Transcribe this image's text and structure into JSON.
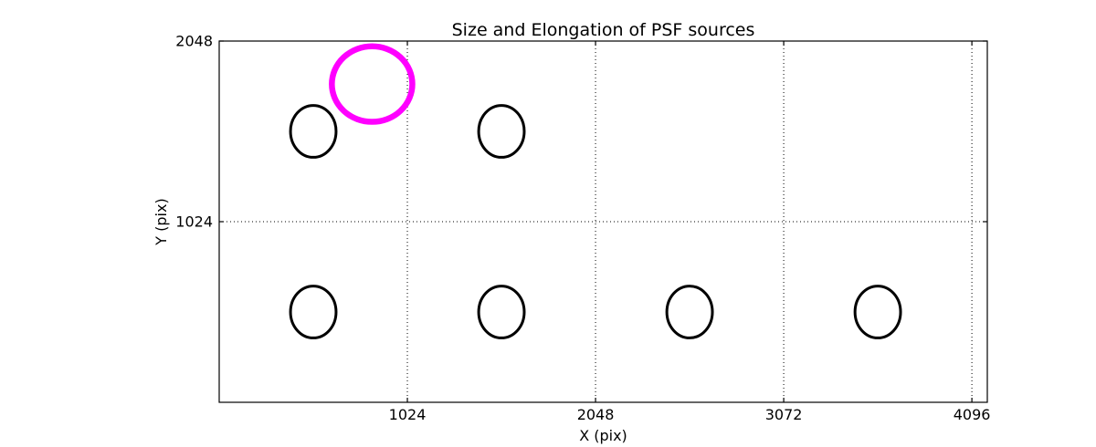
{
  "figure": {
    "background": "#ffffff"
  },
  "chart_data": {
    "type": "scatter",
    "title": "Size and Elongation of PSF sources",
    "xlabel": "X (pix)",
    "ylabel": "Y (pix)",
    "xlim": [
      0,
      4180
    ],
    "ylim": [
      0,
      2048
    ],
    "xticks": [
      1024,
      2048,
      3072,
      4096
    ],
    "yticks": [
      1024,
      2048
    ],
    "grid": {
      "visible": true,
      "style": "dotted",
      "color": "#000000"
    },
    "axes_color": "#000000",
    "highlight_color": "#ff00ff",
    "source_color": "#000000",
    "sources": [
      {
        "x": 832,
        "y": 1804,
        "semi_x": 219,
        "semi_y": 214,
        "color": "#ff00ff",
        "linewidth": 6.5,
        "role": "highlighted-psf-source"
      },
      {
        "x": 512,
        "y": 1536,
        "semi_x": 124,
        "semi_y": 147,
        "color": "#000000",
        "linewidth": 3,
        "role": "psf-source"
      },
      {
        "x": 1536,
        "y": 1536,
        "semi_x": 124,
        "semi_y": 147,
        "color": "#000000",
        "linewidth": 3,
        "role": "psf-source"
      },
      {
        "x": 512,
        "y": 512,
        "semi_x": 124,
        "semi_y": 147,
        "color": "#000000",
        "linewidth": 3,
        "role": "psf-source"
      },
      {
        "x": 1536,
        "y": 512,
        "semi_x": 124,
        "semi_y": 147,
        "color": "#000000",
        "linewidth": 3,
        "role": "psf-source"
      },
      {
        "x": 2560,
        "y": 512,
        "semi_x": 124,
        "semi_y": 147,
        "color": "#000000",
        "linewidth": 3,
        "role": "psf-source"
      },
      {
        "x": 3584,
        "y": 512,
        "semi_x": 124,
        "semi_y": 147,
        "color": "#000000",
        "linewidth": 3,
        "role": "psf-source"
      }
    ]
  }
}
